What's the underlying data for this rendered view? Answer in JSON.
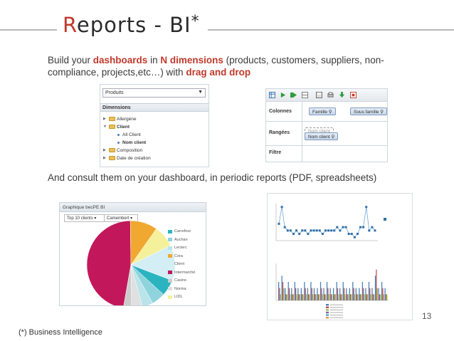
{
  "slide": {
    "title_first_letter": "R",
    "title_rest": "eports - BI",
    "title_star": "*",
    "page_number": "13",
    "footnote": "(*) Business Intelligence"
  },
  "paragraph1": {
    "t1": "Build your ",
    "h1": "dashboards",
    "t2": " in ",
    "h2": "N dimensions",
    "t3": " (products, customers, suppliers, non-compliance, projects,etc…) with ",
    "h3": "drag and drop"
  },
  "paragraph2": {
    "text": "And consult them on your dashboard, in periodic reports (PDF, spreadsheets)"
  },
  "dimensions_panel": {
    "select_value": "Produits",
    "header": "Dimensions",
    "tree": [
      {
        "label": "Allergène",
        "type": "folder",
        "expanded": false
      },
      {
        "label": "Client",
        "type": "folder",
        "expanded": true
      },
      {
        "label": "All Client",
        "type": "leaf"
      },
      {
        "label": "Nom client",
        "type": "leaf"
      },
      {
        "label": "Composition",
        "type": "folder",
        "expanded": false
      },
      {
        "label": "Date de création",
        "type": "folder",
        "expanded": false
      }
    ]
  },
  "pivot_panel": {
    "columns_label": "Colonnes",
    "rows_label": "Rangées",
    "filter_label": "Filtre",
    "column_chips": [
      "Famille",
      "Sous famille"
    ],
    "row_ghost": "Nom client",
    "row_chip": "Nom client"
  },
  "pie_panel": {
    "header": "Graphique becPE BI",
    "selector1": "Top 10 clients",
    "selector2": "Camembert",
    "legend": [
      {
        "label": "Carrefour",
        "color": "#2bb3c0"
      },
      {
        "label": "Auchan",
        "color": "#8fd4dc"
      },
      {
        "label": "Leclerc",
        "color": "#b9e4ea"
      },
      {
        "label": "Cora",
        "color": "#f0a830"
      },
      {
        "label": "Client",
        "color": "#d3eef5"
      },
      {
        "label": "Intermarché",
        "color": "#c2185b"
      },
      {
        "label": "Casino",
        "color": "#cccccc"
      },
      {
        "label": "Norma",
        "color": "#e0e0e0"
      },
      {
        "label": "LIDL",
        "color": "#f5f09a"
      }
    ],
    "chart_data": {
      "type": "pie",
      "categories": [
        "Intermarché",
        "Cora",
        "LIDL",
        "Client",
        "Carrefour",
        "Auchan",
        "Leclerc",
        "Norma",
        "Casino"
      ],
      "values": [
        47,
        10,
        8,
        13,
        6,
        5,
        4,
        4,
        3
      ],
      "colors": [
        "#c2185b",
        "#f0a830",
        "#f5f09a",
        "#d3eef5",
        "#2bb3c0",
        "#8fd4dc",
        "#b9e4ea",
        "#e0e0e0",
        "#cccccc"
      ]
    }
  },
  "report_panel": {
    "line_chart": {
      "type": "line",
      "x": [
        1,
        2,
        3,
        4,
        5,
        6,
        7,
        8,
        9,
        10,
        11,
        12,
        13,
        14,
        15,
        16,
        17,
        18,
        19,
        20,
        21,
        22,
        23,
        24,
        25,
        26,
        27,
        28,
        29,
        30,
        31,
        32,
        33,
        34
      ],
      "values": [
        5,
        10,
        4,
        3,
        3,
        2,
        3,
        2,
        3,
        3,
        2,
        3,
        3,
        3,
        3,
        2,
        3,
        3,
        3,
        3,
        4,
        3,
        4,
        4,
        2,
        2,
        1,
        2,
        4,
        4,
        10,
        3,
        4,
        3
      ]
    },
    "bar_chart": {
      "type": "bar",
      "x": [
        1,
        2,
        3,
        4,
        5,
        6,
        7,
        8,
        9,
        10,
        11,
        12,
        13,
        14,
        15,
        16,
        17,
        18,
        19,
        20,
        21,
        22,
        23,
        24,
        25,
        26,
        27,
        28,
        29,
        30,
        31,
        32,
        33,
        34
      ],
      "series": [
        {
          "values": [
            3,
            4,
            2,
            3,
            2,
            3,
            2,
            2,
            3,
            2,
            3,
            2,
            2,
            3,
            2,
            3,
            2,
            2,
            3,
            2,
            3,
            2,
            2,
            3,
            2,
            2,
            3,
            2,
            3,
            2,
            4,
            2,
            3,
            2
          ],
          "color": "#4a7fb5"
        },
        {
          "values": [
            2,
            3,
            1,
            2,
            1,
            2,
            1,
            1,
            2,
            1,
            2,
            1,
            1,
            2,
            1,
            2,
            1,
            1,
            2,
            1,
            2,
            1,
            1,
            2,
            1,
            1,
            2,
            1,
            2,
            1,
            5,
            1,
            2,
            1
          ],
          "color": "#c0504d"
        },
        {
          "values": [
            1,
            2,
            1,
            1,
            1,
            1,
            1,
            1,
            1,
            1,
            1,
            1,
            1,
            1,
            1,
            1,
            1,
            1,
            1,
            1,
            1,
            1,
            1,
            1,
            1,
            1,
            1,
            1,
            1,
            1,
            2,
            1,
            1,
            1
          ],
          "color": "#9bbb59"
        }
      ]
    }
  }
}
